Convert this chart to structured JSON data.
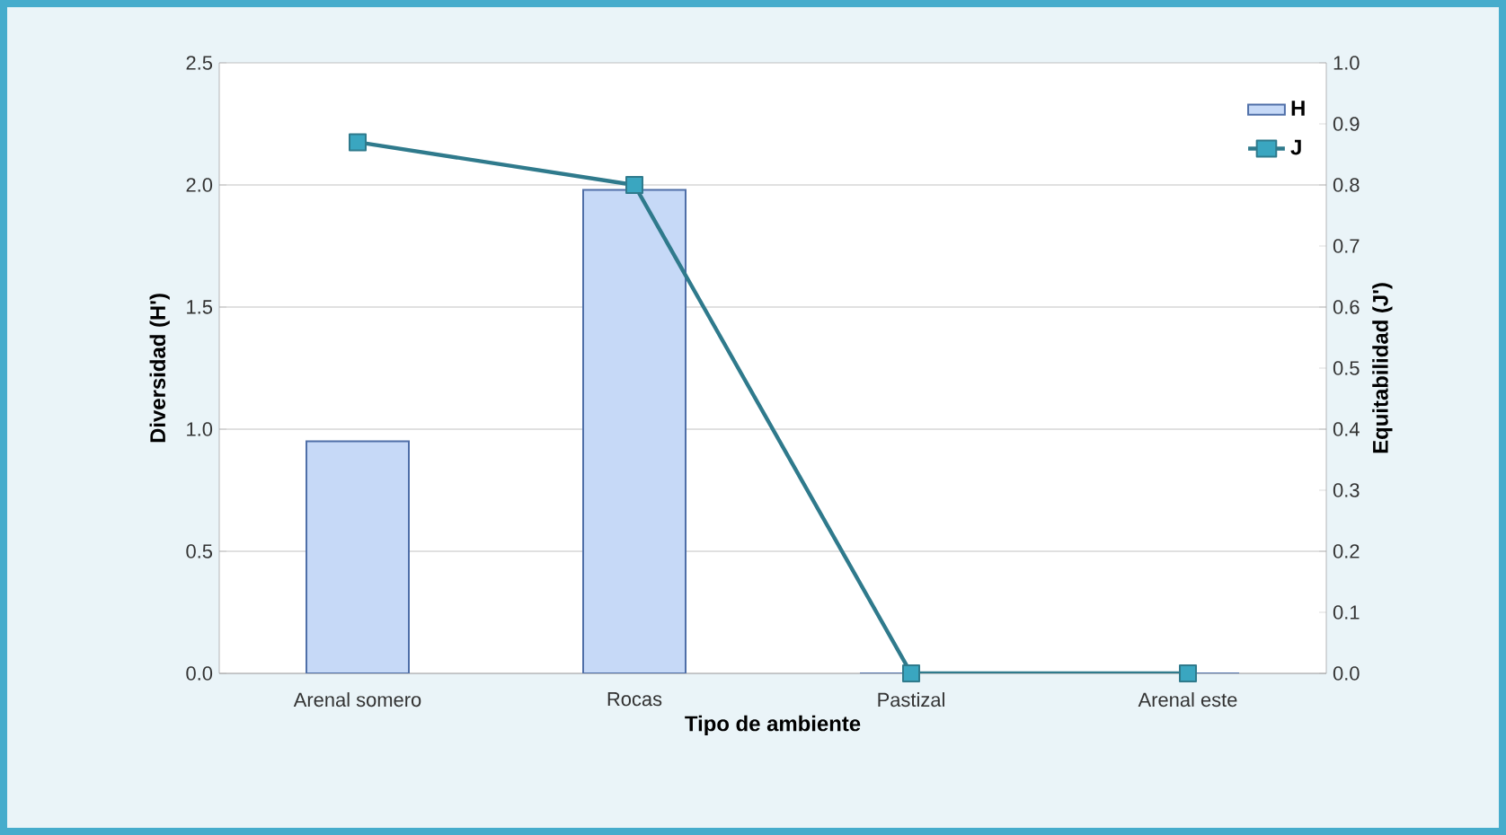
{
  "chart_data": {
    "type": "bar",
    "xlabel": "Tipo de ambiente",
    "ylabel": "Diversidad (H')",
    "y2label": "Equitabilidad (J')",
    "categories": [
      "Arenal somero",
      "Rocas",
      "Pastizal",
      "Arenal este"
    ],
    "series": [
      {
        "name": "H",
        "color": "#c6d9f7",
        "values": [
          0.95,
          1.98,
          0,
          0
        ]
      },
      {
        "name": "J",
        "type": "line",
        "axis": "y2",
        "color": "#2f7a8c",
        "values": [
          0.87,
          0.8,
          0,
          0
        ]
      }
    ],
    "ylim": [
      0,
      2.5
    ],
    "yticks": [
      {
        "value": 0,
        "label": "0.0"
      },
      {
        "value": 0.5,
        "label": "0.5"
      },
      {
        "value": 1,
        "label": "1.0"
      },
      {
        "value": 1.5,
        "label": "1.5"
      },
      {
        "value": 2,
        "label": "2.0"
      },
      {
        "value": 2.5,
        "label": "2.5"
      }
    ],
    "y2lim": [
      0,
      1
    ],
    "y2ticks": [
      {
        "value": 0,
        "label": "0.0"
      },
      {
        "value": 0.1,
        "label": "0.1"
      },
      {
        "value": 0.2,
        "label": "0.2"
      },
      {
        "value": 0.3,
        "label": "0.3"
      },
      {
        "value": 0.4,
        "label": "0.4"
      },
      {
        "value": 0.5,
        "label": "0.5"
      },
      {
        "value": 0.6,
        "label": "0.6"
      },
      {
        "value": 0.7,
        "label": "0.7"
      },
      {
        "value": 0.8,
        "label": "0.8"
      },
      {
        "value": 0.9,
        "label": "0.9"
      },
      {
        "value": 1,
        "label": "1.0"
      }
    ],
    "grid": "y",
    "legend": "top right",
    "marker": "square"
  }
}
